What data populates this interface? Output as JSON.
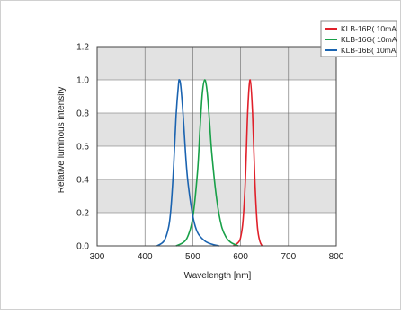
{
  "chart_data": {
    "type": "line",
    "xlabel": "Wavelength [nm]",
    "ylabel": "Relative luminous intensity",
    "xlim": [
      300,
      800
    ],
    "ylim": [
      0.0,
      1.2
    ],
    "xticks": [
      300,
      400,
      500,
      600,
      700,
      800
    ],
    "xtick_labels": [
      "300",
      "400",
      "500",
      "600",
      "700",
      "800"
    ],
    "yticks": [
      0.0,
      0.2,
      0.4,
      0.6,
      0.8,
      1.0,
      1.2
    ],
    "ytick_labels": [
      "0.0",
      "0.2",
      "0.4",
      "0.6",
      "0.8",
      "1.0",
      "1.2"
    ],
    "grid": true,
    "grid_style": "alternating gray bands",
    "legend_position": "top-right",
    "series": [
      {
        "name": "KLB-16R( 10mA",
        "color": "#e0202a",
        "peak_nm": 620,
        "x": [
          585,
          595,
          600,
          605,
          610,
          615,
          620,
          625,
          630,
          635,
          640,
          645
        ],
        "y": [
          0.0,
          0.02,
          0.05,
          0.15,
          0.4,
          0.82,
          1.0,
          0.8,
          0.38,
          0.12,
          0.03,
          0.0
        ]
      },
      {
        "name": "KLB-16G( 10mA",
        "color": "#18a048",
        "peak_nm": 525,
        "x": [
          465,
          480,
          490,
          500,
          510,
          515,
          520,
          525,
          530,
          535,
          540,
          550,
          560,
          570,
          580,
          595
        ],
        "y": [
          0.0,
          0.02,
          0.06,
          0.17,
          0.45,
          0.7,
          0.92,
          1.0,
          0.93,
          0.75,
          0.55,
          0.28,
          0.12,
          0.05,
          0.02,
          0.0
        ]
      },
      {
        "name": "KLB-16B( 10mA",
        "color": "#1a63b0",
        "peak_nm": 472,
        "x": [
          425,
          440,
          450,
          455,
          460,
          465,
          470,
          472,
          475,
          480,
          485,
          490,
          500,
          510,
          525,
          540,
          555
        ],
        "y": [
          0.0,
          0.03,
          0.12,
          0.25,
          0.48,
          0.78,
          0.97,
          1.0,
          0.96,
          0.78,
          0.55,
          0.38,
          0.18,
          0.08,
          0.03,
          0.01,
          0.0
        ]
      }
    ]
  }
}
